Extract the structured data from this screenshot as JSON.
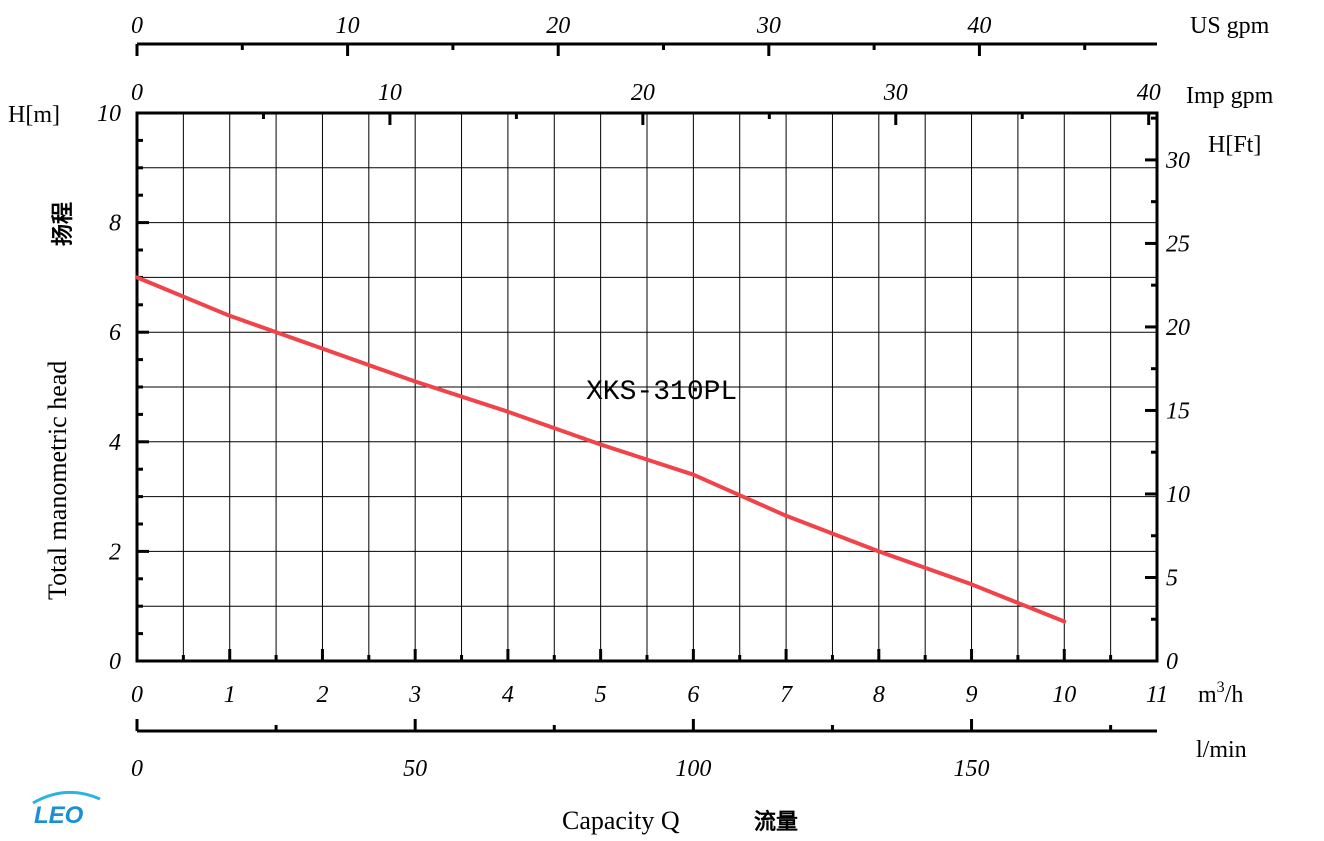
{
  "chart_data": {
    "type": "line",
    "title": "XKS-310PL",
    "xlabel": "Capacity Q",
    "xlabel_cn": "流量",
    "ylabel": "Total manometric head",
    "ylabel_cn": "扬程",
    "x_unit": "m³/h",
    "y_unit": "H[m]",
    "xlim": [
      0,
      11
    ],
    "ylim": [
      0,
      10
    ],
    "x_ticks": [
      0,
      1,
      2,
      3,
      4,
      5,
      6,
      7,
      8,
      9,
      10,
      11
    ],
    "y_ticks": [
      0,
      2,
      4,
      6,
      8,
      10
    ],
    "grid": true,
    "series": [
      {
        "x": [
          0,
          1,
          2,
          3,
          4,
          5,
          6,
          7,
          8,
          9,
          10
        ],
        "y": [
          7.0,
          6.3,
          5.7,
          5.1,
          4.55,
          3.95,
          3.4,
          2.65,
          2.0,
          1.4,
          0.72
        ],
        "color": "#f0434a"
      }
    ],
    "secondary_axes": {
      "right": {
        "unit": "H[Ft]",
        "ticks": [
          0,
          5,
          10,
          15,
          20,
          25,
          30
        ]
      },
      "bottom": {
        "unit": "l/min",
        "ticks": [
          0,
          50,
          100,
          150
        ]
      },
      "top_imp": {
        "unit": "Imp gpm",
        "ticks": [
          0,
          10,
          20,
          30,
          40
        ]
      },
      "top_us": {
        "unit": "US gpm",
        "ticks": [
          0,
          10,
          20,
          30,
          40
        ]
      }
    }
  },
  "logo": {
    "text": "LEO",
    "color": "#1a8fd6"
  }
}
